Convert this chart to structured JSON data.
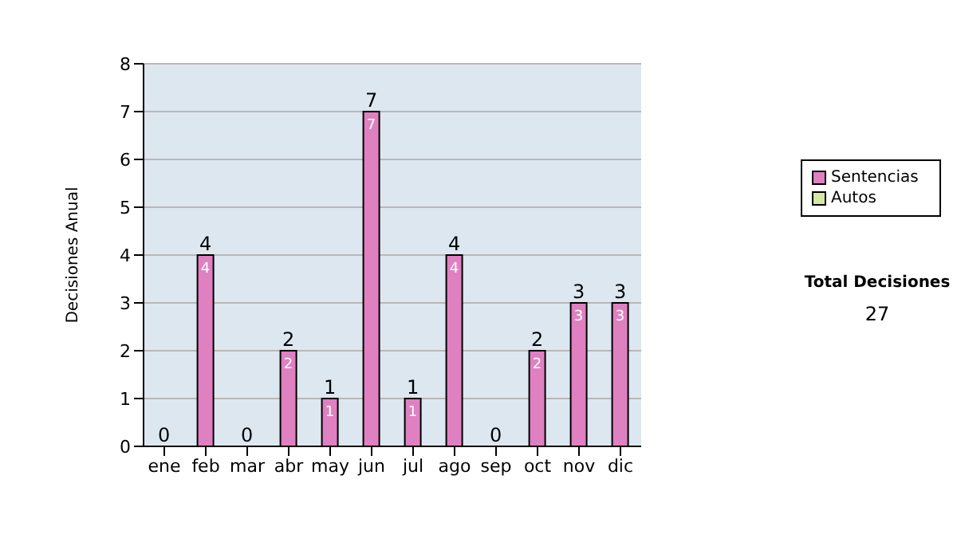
{
  "chart_data": {
    "type": "bar",
    "stacked": true,
    "ylabel": "Decisiones Anual",
    "categories": [
      "ene",
      "feb",
      "mar",
      "abr",
      "may",
      "jun",
      "jul",
      "ago",
      "sep",
      "oct",
      "nov",
      "dic"
    ],
    "series": [
      {
        "name": "Sentencias",
        "color": "#df80c0",
        "values": [
          0,
          4,
          0,
          2,
          1,
          7,
          1,
          4,
          0,
          2,
          3,
          3
        ],
        "value_labels": [
          null,
          "4",
          null,
          "2",
          "1",
          "7",
          "1",
          "4",
          null,
          "2",
          "3",
          "3"
        ]
      },
      {
        "name": "Autos",
        "color": "#d4eaa0",
        "values": [
          0,
          0,
          0,
          0,
          0,
          0,
          0,
          0,
          0,
          0,
          0,
          0
        ]
      }
    ],
    "totals": [
      "0",
      "4",
      "0",
      "2",
      "1",
      "7",
      "1",
      "4",
      "0",
      "2",
      "3",
      "3"
    ],
    "ylim": [
      0,
      8
    ],
    "yticks": [
      0,
      1,
      2,
      3,
      4,
      5,
      6,
      7,
      8
    ],
    "grid": "y",
    "legend": "right",
    "annotations": [
      "Total Decisiones",
      "27"
    ]
  }
}
